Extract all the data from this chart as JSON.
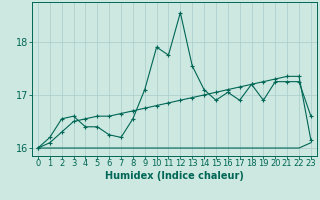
{
  "xlabel": "Humidex (Indice chaleur)",
  "bg_color": "#cce8e0",
  "line_color": "#006655",
  "grid_color": "#aacccc",
  "x_values": [
    0,
    1,
    2,
    3,
    4,
    5,
    6,
    7,
    8,
    9,
    10,
    11,
    12,
    13,
    14,
    15,
    16,
    17,
    18,
    19,
    20,
    21,
    22,
    23
  ],
  "line1_y": [
    16.0,
    16.2,
    16.55,
    16.6,
    16.4,
    16.4,
    16.25,
    16.2,
    16.55,
    17.1,
    17.9,
    17.75,
    18.55,
    17.55,
    17.1,
    16.9,
    17.05,
    16.9,
    17.2,
    16.9,
    17.25,
    17.25,
    17.25,
    16.6
  ],
  "line2_y": [
    16.0,
    16.1,
    16.3,
    16.5,
    16.55,
    16.6,
    16.6,
    16.65,
    16.7,
    16.75,
    16.8,
    16.85,
    16.9,
    16.95,
    17.0,
    17.05,
    17.1,
    17.15,
    17.2,
    17.25,
    17.3,
    17.35,
    17.35,
    16.15
  ],
  "line3_y": [
    16.0,
    16.0,
    16.0,
    16.0,
    16.0,
    16.0,
    16.0,
    16.0,
    16.0,
    16.0,
    16.0,
    16.0,
    16.0,
    16.0,
    16.0,
    16.0,
    16.0,
    16.0,
    16.0,
    16.0,
    16.0,
    16.0,
    16.0,
    16.1
  ],
  "ylim": [
    15.85,
    18.75
  ],
  "xlim": [
    -0.5,
    23.5
  ],
  "yticks": [
    16,
    17,
    18
  ],
  "xticks": [
    0,
    1,
    2,
    3,
    4,
    5,
    6,
    7,
    8,
    9,
    10,
    11,
    12,
    13,
    14,
    15,
    16,
    17,
    18,
    19,
    20,
    21,
    22,
    23
  ],
  "xlabel_fontsize": 7,
  "tick_fontsize": 6,
  "ytick_fontsize": 7,
  "marker_size": 2.5,
  "linewidth": 0.8
}
